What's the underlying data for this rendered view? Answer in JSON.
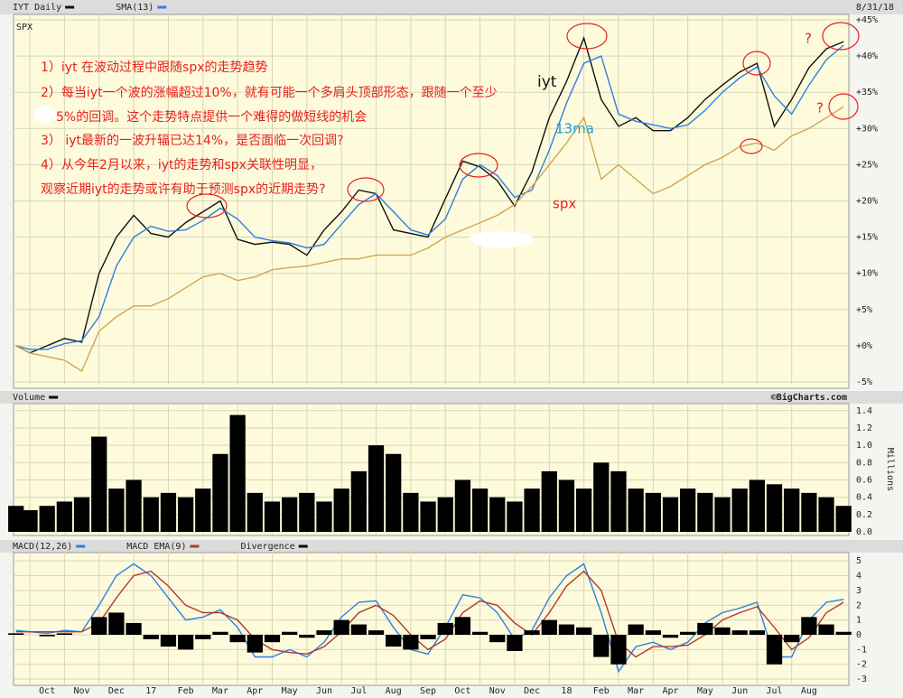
{
  "chart_data": [
    {
      "type": "line",
      "date": "8/31/18",
      "annotations": [
        "1）iyt 在波动过程中跟随spx的走势趋势",
        "2）每当iyt一个波的涨幅超过10%，就有可能一个多肩头顶部形态，跟随一个至少",
        "5%的回调。这个走势特点提供一个难得的做短线的机会",
        "3） iyt最新的一波升辐已达14%，是否面临一次回调?",
        "4）从今年2月以来，iyt的走势和spx关联性明显，",
        "观察近期iyt的走势或许有助于预测spx的近期走势?"
      ],
      "labels": [
        "iyt",
        "13ma",
        "spx",
        "?",
        "?"
      ],
      "xlim": [
        -0.47,
        23.65
      ],
      "ylim": [
        -5,
        45
      ],
      "yticks": [
        {
          "value": -5,
          "label": "-5%"
        },
        {
          "value": 0,
          "label": "+0%"
        },
        {
          "value": 5,
          "label": "+5%"
        },
        {
          "value": 10,
          "label": "+10%"
        },
        {
          "value": 15,
          "label": "+15%"
        },
        {
          "value": 20,
          "label": "+20%"
        },
        {
          "value": 25,
          "label": "+25%"
        },
        {
          "value": 30,
          "label": "+30%"
        },
        {
          "value": 35,
          "label": "+35%"
        },
        {
          "value": 40,
          "label": "+40%"
        },
        {
          "value": 45,
          "label": "+45%"
        }
      ],
      "grid": true,
      "x": [
        -0.4,
        0,
        0.5,
        1,
        1.5,
        2,
        2.5,
        3,
        3.5,
        4,
        4.5,
        5,
        5.5,
        6,
        6.5,
        7,
        7.5,
        8,
        8.5,
        9,
        9.5,
        10,
        10.5,
        11,
        11.5,
        12,
        12.5,
        13,
        13.5,
        14,
        14.5,
        15,
        15.5,
        16,
        16.5,
        17,
        17.5,
        18,
        18.5,
        19,
        19.5,
        20,
        20.5,
        21,
        21.5,
        22,
        22.5,
        23,
        23.5
      ],
      "series": [
        {
          "name": "IYT Daily",
          "color": "#111111",
          "values": [
            0,
            -1,
            0,
            1,
            0.5,
            10,
            15,
            18,
            15.5,
            15,
            17,
            18.5,
            20,
            14.7,
            14,
            14.3,
            14,
            12.5,
            16,
            18.5,
            21.5,
            21,
            16,
            15.5,
            15,
            20.3,
            25.5,
            24.7,
            22.8,
            19.3,
            24,
            31.5,
            36.5,
            42.5,
            34,
            30.3,
            31.5,
            29.7,
            29.7,
            31.5,
            34,
            36,
            37.8,
            39,
            30.3,
            34,
            38.4,
            41,
            42
          ]
        },
        {
          "name": "SMA(13)",
          "color": "#2f7fe0",
          "values": [
            0,
            -0.5,
            -0.5,
            0.3,
            0.7,
            4,
            11,
            15,
            16.5,
            15.8,
            16,
            17.3,
            19,
            17.5,
            15,
            14.5,
            14.2,
            13.5,
            14,
            16.8,
            19.5,
            21,
            18.5,
            16,
            15.3,
            17.5,
            23,
            25,
            23.5,
            20.5,
            21.5,
            27,
            33.5,
            39,
            40,
            32,
            31,
            30.5,
            30,
            30.5,
            32.5,
            35,
            37,
            38.5,
            34.5,
            32,
            36,
            39.5,
            41.5
          ]
        },
        {
          "name": "SPX",
          "color": "#d2a54e",
          "values": [
            0,
            -1,
            -1.5,
            -2,
            -3.5,
            2,
            4,
            5.5,
            5.5,
            6.5,
            8,
            9.5,
            10,
            9,
            9.5,
            10.5,
            10.8,
            11,
            11.5,
            12,
            12,
            12.5,
            12.5,
            12.5,
            13.5,
            15,
            16,
            17,
            18,
            19.5,
            22,
            25,
            28,
            31.5,
            23,
            25,
            23,
            21,
            22,
            23.5,
            25,
            26,
            27.5,
            28,
            27,
            29,
            30,
            31.5,
            33
          ]
        }
      ]
    },
    {
      "type": "bar",
      "source": "©BigCharts.com",
      "y_label": "Millions",
      "xlim": [
        -0.47,
        23.65
      ],
      "ylim": [
        0,
        1.45
      ],
      "yticks": [
        {
          "value": 0,
          "label": "0.0"
        },
        0.2,
        0.4,
        0.6,
        0.8,
        {
          "value": 1,
          "label": "1.0"
        },
        1.2,
        1.4
      ],
      "x": [
        -0.4,
        0,
        0.5,
        1,
        1.5,
        2,
        2.5,
        3,
        3.5,
        4,
        4.5,
        5,
        5.5,
        6,
        6.5,
        7,
        7.5,
        8,
        8.5,
        9,
        9.5,
        10,
        10.5,
        11,
        11.5,
        12,
        12.5,
        13,
        13.5,
        14,
        14.5,
        15,
        15.5,
        16,
        16.5,
        17,
        17.5,
        18,
        18.5,
        19,
        19.5,
        20,
        20.5,
        21,
        21.5,
        22,
        22.5,
        23,
        23.5
      ],
      "series": [
        {
          "name": "Volume",
          "color": "#000000",
          "values": [
            0.3,
            0.25,
            0.3,
            0.35,
            0.4,
            1.1,
            0.5,
            0.6,
            0.4,
            0.45,
            0.4,
            0.5,
            0.9,
            1.35,
            0.45,
            0.35,
            0.4,
            0.45,
            0.35,
            0.5,
            0.7,
            1.0,
            0.9,
            0.45,
            0.35,
            0.4,
            0.6,
            0.5,
            0.4,
            0.35,
            0.5,
            0.7,
            0.6,
            0.5,
            0.8,
            0.7,
            0.5,
            0.45,
            0.4,
            0.5,
            0.45,
            0.4,
            0.5,
            0.6,
            0.55,
            0.5,
            0.45,
            0.4,
            0.3
          ]
        }
      ]
    },
    {
      "type": "line",
      "xlim": [
        -0.47,
        23.65
      ],
      "ylim": [
        -3.3,
        5.5
      ],
      "yticks": [
        -3,
        -2,
        -1,
        0,
        1,
        2,
        3,
        4,
        5
      ],
      "xticks": [
        {
          "value": 0,
          "label": "Oct"
        },
        {
          "value": 1,
          "label": "Nov"
        },
        {
          "value": 2,
          "label": "Dec"
        },
        {
          "value": 3,
          "label": "17"
        },
        {
          "value": 4,
          "label": "Feb"
        },
        {
          "value": 5,
          "label": "Mar"
        },
        {
          "value": 6,
          "label": "Apr"
        },
        {
          "value": 7,
          "label": "May"
        },
        {
          "value": 8,
          "label": "Jun"
        },
        {
          "value": 9,
          "label": "Jul"
        },
        {
          "value": 10,
          "label": "Aug"
        },
        {
          "value": 11,
          "label": "Sep"
        },
        {
          "value": 12,
          "label": "Oct"
        },
        {
          "value": 13,
          "label": "Nov"
        },
        {
          "value": 14,
          "label": "Dec"
        },
        {
          "value": 15,
          "label": "18"
        },
        {
          "value": 16,
          "label": "Feb"
        },
        {
          "value": 17,
          "label": "Mar"
        },
        {
          "value": 18,
          "label": "Apr"
        },
        {
          "value": 19,
          "label": "May"
        },
        {
          "value": 20,
          "label": "Jun"
        },
        {
          "value": 21,
          "label": "Jul"
        },
        {
          "value": 22,
          "label": "Aug"
        }
      ],
      "x": [
        -0.4,
        0,
        0.5,
        1,
        1.5,
        2,
        2.5,
        3,
        3.5,
        4,
        4.5,
        5,
        5.5,
        6,
        6.5,
        7,
        7.5,
        8,
        8.5,
        9,
        9.5,
        10,
        10.5,
        11,
        11.5,
        12,
        12.5,
        13,
        13.5,
        14,
        14.5,
        15,
        15.5,
        16,
        16.5,
        17,
        17.5,
        18,
        18.5,
        19,
        19.5,
        20,
        20.5,
        21,
        21.5,
        22,
        22.5,
        23,
        23.5
      ],
      "series": [
        {
          "name": "MACD(12,26)",
          "color": "#2f7fe0",
          "values": [
            0.3,
            0.2,
            0.1,
            0.3,
            0.2,
            2,
            4,
            4.8,
            4,
            2.5,
            1,
            1.2,
            1.7,
            0.5,
            -1.5,
            -1.5,
            -1,
            -1.5,
            -0.5,
            1.2,
            2.2,
            2.3,
            0.5,
            -1,
            -1.3,
            0.5,
            2.7,
            2.5,
            1.5,
            -0.3,
            0.3,
            2.5,
            4,
            4.8,
            1.5,
            -2.5,
            -0.8,
            -0.5,
            -1,
            -0.5,
            0.8,
            1.5,
            1.8,
            2.2,
            -1.5,
            -1.5,
            1,
            2.2,
            2.4
          ]
        },
        {
          "name": "MACD EMA(9)",
          "color": "#b03a2e",
          "values": [
            0.2,
            0.2,
            0.2,
            0.2,
            0.2,
            0.8,
            2.5,
            4,
            4.3,
            3.3,
            2,
            1.5,
            1.5,
            1,
            -0.3,
            -1,
            -1.2,
            -1.3,
            -0.8,
            0.2,
            1.5,
            2,
            1.3,
            0,
            -1,
            -0.3,
            1.5,
            2.3,
            2,
            0.8,
            0,
            1.5,
            3.3,
            4.3,
            3,
            -0.5,
            -1.5,
            -0.8,
            -0.8,
            -0.7,
            0,
            1,
            1.5,
            1.9,
            0.5,
            -1,
            -0.2,
            1.5,
            2.2
          ]
        },
        {
          "name": "Divergence",
          "type": "bar",
          "color": "#000000",
          "values": [
            0.1,
            0,
            -0.1,
            0.1,
            0,
            1.2,
            1.5,
            0.8,
            -0.3,
            -0.8,
            -1,
            -0.3,
            0.2,
            -0.5,
            -1.2,
            -0.5,
            0.2,
            -0.2,
            0.3,
            1,
            0.7,
            0.3,
            -0.8,
            -1,
            -0.3,
            0.8,
            1.2,
            0.2,
            -0.5,
            -1.1,
            0.3,
            1,
            0.7,
            0.5,
            -1.5,
            -2,
            0.7,
            0.3,
            -0.2,
            0.2,
            0.8,
            0.5,
            0.3,
            0.3,
            -2,
            -0.5,
            1.2,
            0.7,
            0.2
          ]
        }
      ]
    }
  ]
}
